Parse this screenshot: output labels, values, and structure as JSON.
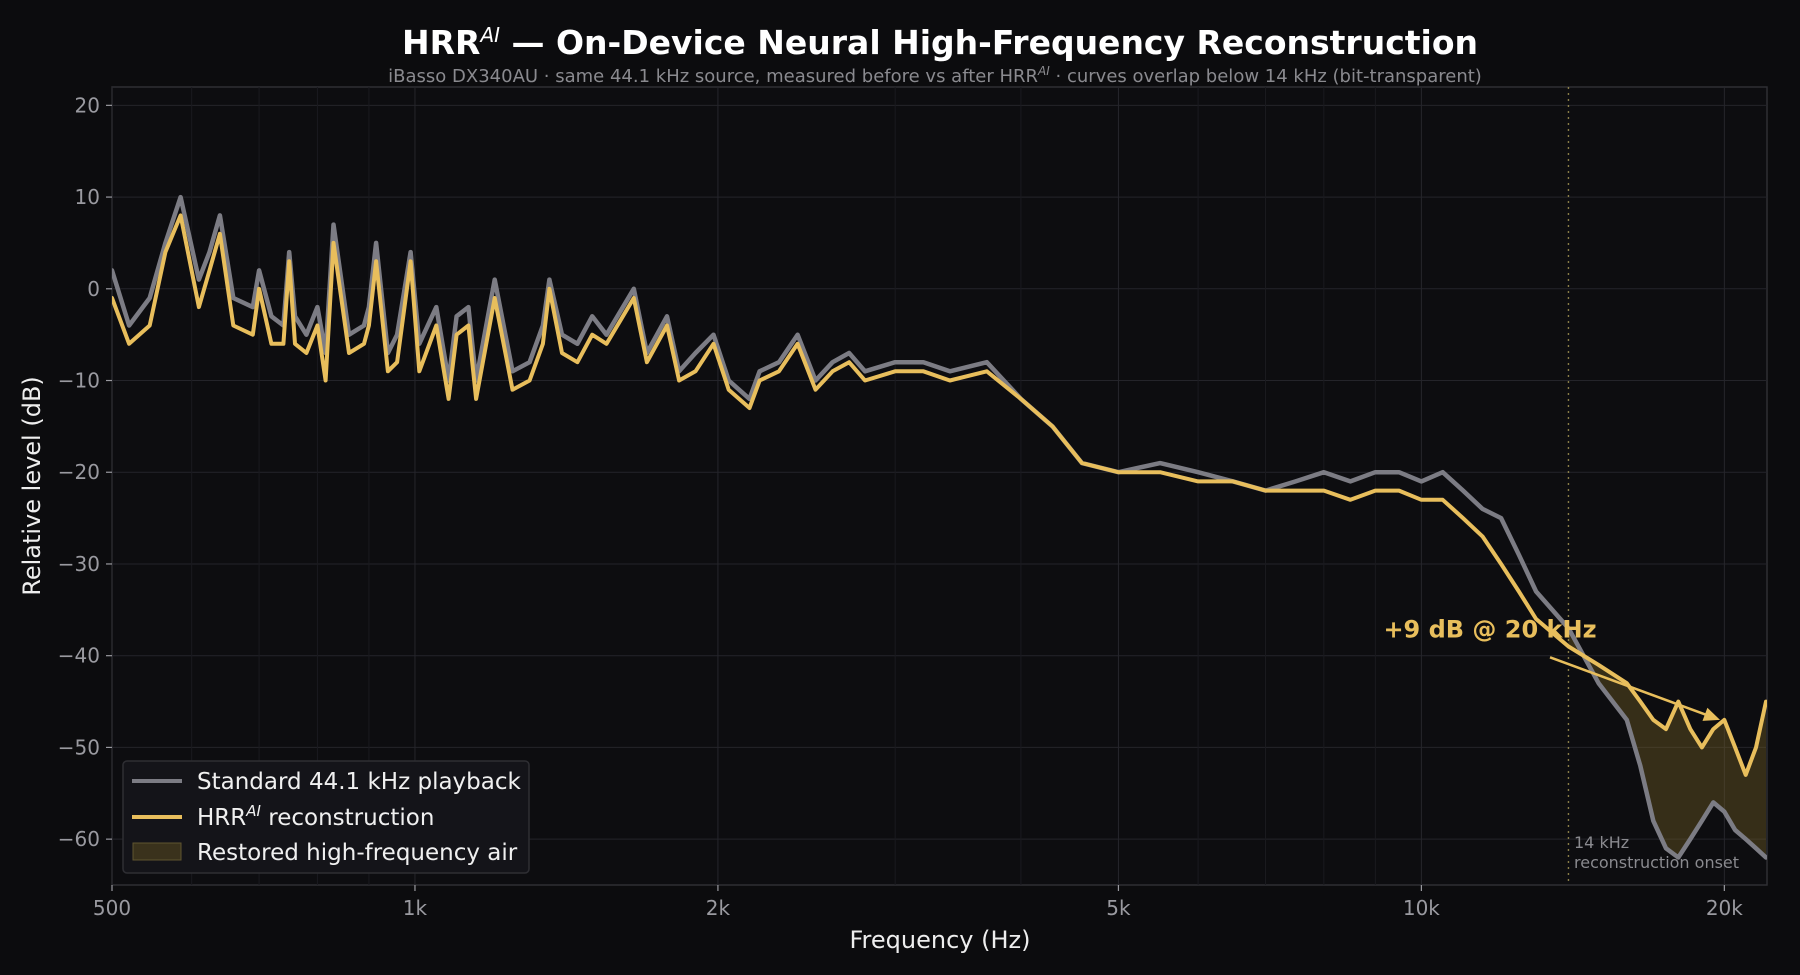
{
  "chart_data": {
    "type": "line",
    "title_main": "HRR",
    "title_sup": "AI",
    "title_rest": " —  On-Device Neural High-Frequency Reconstruction",
    "subtitle_pre": "iBasso DX340AU · same 44.1 kHz source, measured before vs after HRR",
    "subtitle_sup": "AI",
    "subtitle_post": " · curves overlap below 14 kHz (bit-transparent)",
    "xlabel": "Frequency (Hz)",
    "ylabel": "Relative level (dB)",
    "x_scale": "log",
    "xlim": [
      500,
      22050
    ],
    "ylim": [
      -65,
      22
    ],
    "x_ticks": [
      {
        "value": 500,
        "label": "500"
      },
      {
        "value": 1000,
        "label": "1k"
      },
      {
        "value": 2000,
        "label": "2k"
      },
      {
        "value": 5000,
        "label": "5k"
      },
      {
        "value": 10000,
        "label": "10k"
      },
      {
        "value": 20000,
        "label": "20k"
      }
    ],
    "y_ticks": [
      {
        "value": 20,
        "label": "20"
      },
      {
        "value": 10,
        "label": "10"
      },
      {
        "value": 0,
        "label": "0"
      },
      {
        "value": -10,
        "label": "−10"
      },
      {
        "value": -20,
        "label": "−20"
      },
      {
        "value": -30,
        "label": "−30"
      },
      {
        "value": -40,
        "label": "−40"
      },
      {
        "value": -50,
        "label": "−50"
      },
      {
        "value": -60,
        "label": "−60"
      }
    ],
    "grid": true,
    "legend_position": "bottom-left",
    "series": [
      {
        "name": "Standard 44.1 kHz playback",
        "color": "#7c7c84",
        "x": [
          500,
          520,
          545,
          565,
          585,
          610,
          625,
          640,
          660,
          690,
          700,
          720,
          740,
          750,
          760,
          780,
          800,
          815,
          830,
          860,
          890,
          900,
          915,
          940,
          960,
          990,
          1010,
          1050,
          1080,
          1100,
          1130,
          1150,
          1200,
          1250,
          1300,
          1340,
          1360,
          1400,
          1450,
          1500,
          1550,
          1650,
          1700,
          1780,
          1830,
          1900,
          1980,
          2050,
          2150,
          2200,
          2300,
          2400,
          2500,
          2600,
          2700,
          2800,
          3000,
          3200,
          3400,
          3700,
          4000,
          4300,
          4600,
          5000,
          5500,
          6000,
          6500,
          7000,
          7500,
          8000,
          8500,
          9000,
          9500,
          10000,
          10500,
          11000,
          11500,
          12000,
          12500,
          13000,
          14000,
          15000,
          16000,
          16500,
          17000,
          17500,
          18000,
          18500,
          19000,
          19500,
          20000,
          20500,
          21000,
          21500,
          22000
        ],
        "y": [
          2,
          -4,
          -1,
          5,
          10,
          1,
          4,
          8,
          -1,
          -2,
          2,
          -3,
          -4,
          4,
          -3,
          -5,
          -2,
          -7,
          7,
          -5,
          -4,
          -2,
          5,
          -7,
          -5,
          4,
          -6,
          -2,
          -10,
          -3,
          -2,
          -10,
          1,
          -9,
          -8,
          -4,
          1,
          -5,
          -6,
          -3,
          -5,
          0,
          -7,
          -3,
          -9,
          -7,
          -5,
          -10,
          -12,
          -9,
          -8,
          -5,
          -10,
          -8,
          -7,
          -9,
          -8,
          -8,
          -9,
          -8,
          -12,
          -15,
          -19,
          -20,
          -19,
          -20,
          -21,
          -22,
          -21,
          -20,
          -21,
          -20,
          -20,
          -21,
          -20,
          -22,
          -24,
          -25,
          -29,
          -33,
          -37,
          -43,
          -47,
          -52,
          -58,
          -61,
          -62,
          -60,
          -58,
          -56,
          -57,
          -59,
          -60,
          -61,
          -62
        ]
      },
      {
        "name": "HRR reconstruction",
        "name_pre": "HRR",
        "name_sup": "AI",
        "name_post": "  reconstruction",
        "color": "#e8be5c",
        "x": [
          500,
          520,
          545,
          565,
          585,
          610,
          625,
          640,
          660,
          690,
          700,
          720,
          740,
          750,
          760,
          780,
          800,
          815,
          830,
          860,
          890,
          900,
          915,
          940,
          960,
          990,
          1010,
          1050,
          1080,
          1100,
          1130,
          1150,
          1200,
          1250,
          1300,
          1340,
          1360,
          1400,
          1450,
          1500,
          1550,
          1650,
          1700,
          1780,
          1830,
          1900,
          1980,
          2050,
          2150,
          2200,
          2300,
          2400,
          2500,
          2600,
          2700,
          2800,
          3000,
          3200,
          3400,
          3700,
          4000,
          4300,
          4600,
          5000,
          5500,
          6000,
          6500,
          7000,
          7500,
          8000,
          8500,
          9000,
          9500,
          10000,
          10500,
          11000,
          11500,
          12000,
          12500,
          13000,
          14000,
          15000,
          16000,
          16500,
          17000,
          17500,
          18000,
          18500,
          19000,
          19500,
          20000,
          20500,
          21000,
          21500,
          22000
        ],
        "y": [
          -1,
          -6,
          -4,
          4,
          8,
          -2,
          2,
          6,
          -4,
          -5,
          0,
          -6,
          -6,
          3,
          -6,
          -7,
          -4,
          -10,
          5,
          -7,
          -6,
          -4,
          3,
          -9,
          -8,
          3,
          -9,
          -4,
          -12,
          -5,
          -4,
          -12,
          -1,
          -11,
          -10,
          -6,
          0,
          -7,
          -8,
          -5,
          -6,
          -1,
          -8,
          -4,
          -10,
          -9,
          -6,
          -11,
          -13,
          -10,
          -9,
          -6,
          -11,
          -9,
          -8,
          -10,
          -9,
          -9,
          -10,
          -9,
          -12,
          -15,
          -19,
          -20,
          -20,
          -21,
          -21,
          -22,
          -22,
          -22,
          -23,
          -22,
          -22,
          -23,
          -23,
          -25,
          -27,
          -30,
          -33,
          -36,
          -39,
          -41,
          -43,
          -45,
          -47,
          -48,
          -45,
          -48,
          -50,
          -48,
          -47,
          -50,
          -53,
          -50,
          -45
        ]
      }
    ],
    "fill_region": {
      "name": "Restored high-frequency air",
      "color": "#7a6428",
      "x_from": 14000
    },
    "vline": {
      "x": 14000,
      "label_line1": "14 kHz",
      "label_line2": "reconstruction onset"
    },
    "annotation": {
      "text": "+9 dB @ 20 kHz",
      "point": {
        "x": 19800,
        "y": -47
      },
      "text_pos": {
        "x": 11700,
        "y": -38
      }
    }
  }
}
